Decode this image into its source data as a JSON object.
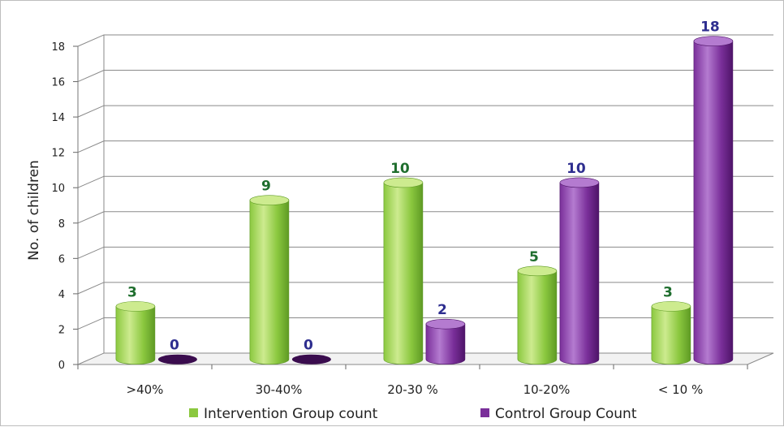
{
  "colors": {
    "intervention": "#8bc83f",
    "intervention_light": "#cdeb8f",
    "intervention_dark": "#5e9a24",
    "control": "#7a2f9a",
    "control_light": "#b47bd0",
    "control_dark": "#4e1468",
    "intervention_label": "#1f6e2e",
    "control_label": "#2e2e8f",
    "grid": "#8a8a8a"
  },
  "chart_data": {
    "type": "bar",
    "categories": [
      ">40%",
      "30-40%",
      "20-30 %",
      "10-20%",
      "< 10 %"
    ],
    "series": [
      {
        "name": "Intervention Group count",
        "values": [
          3,
          9,
          10,
          5,
          3
        ]
      },
      {
        "name": "Control Group Count",
        "values": [
          0,
          0,
          2,
          10,
          18
        ]
      }
    ],
    "xlabel": "",
    "ylabel": "No. of  children",
    "ylim": [
      0,
      18
    ],
    "yticks": [
      0,
      2,
      4,
      6,
      8,
      10,
      12,
      14,
      16,
      18
    ],
    "grid": true,
    "legend": "bottom",
    "style": "3d-cylinder",
    "data_labels": true
  }
}
